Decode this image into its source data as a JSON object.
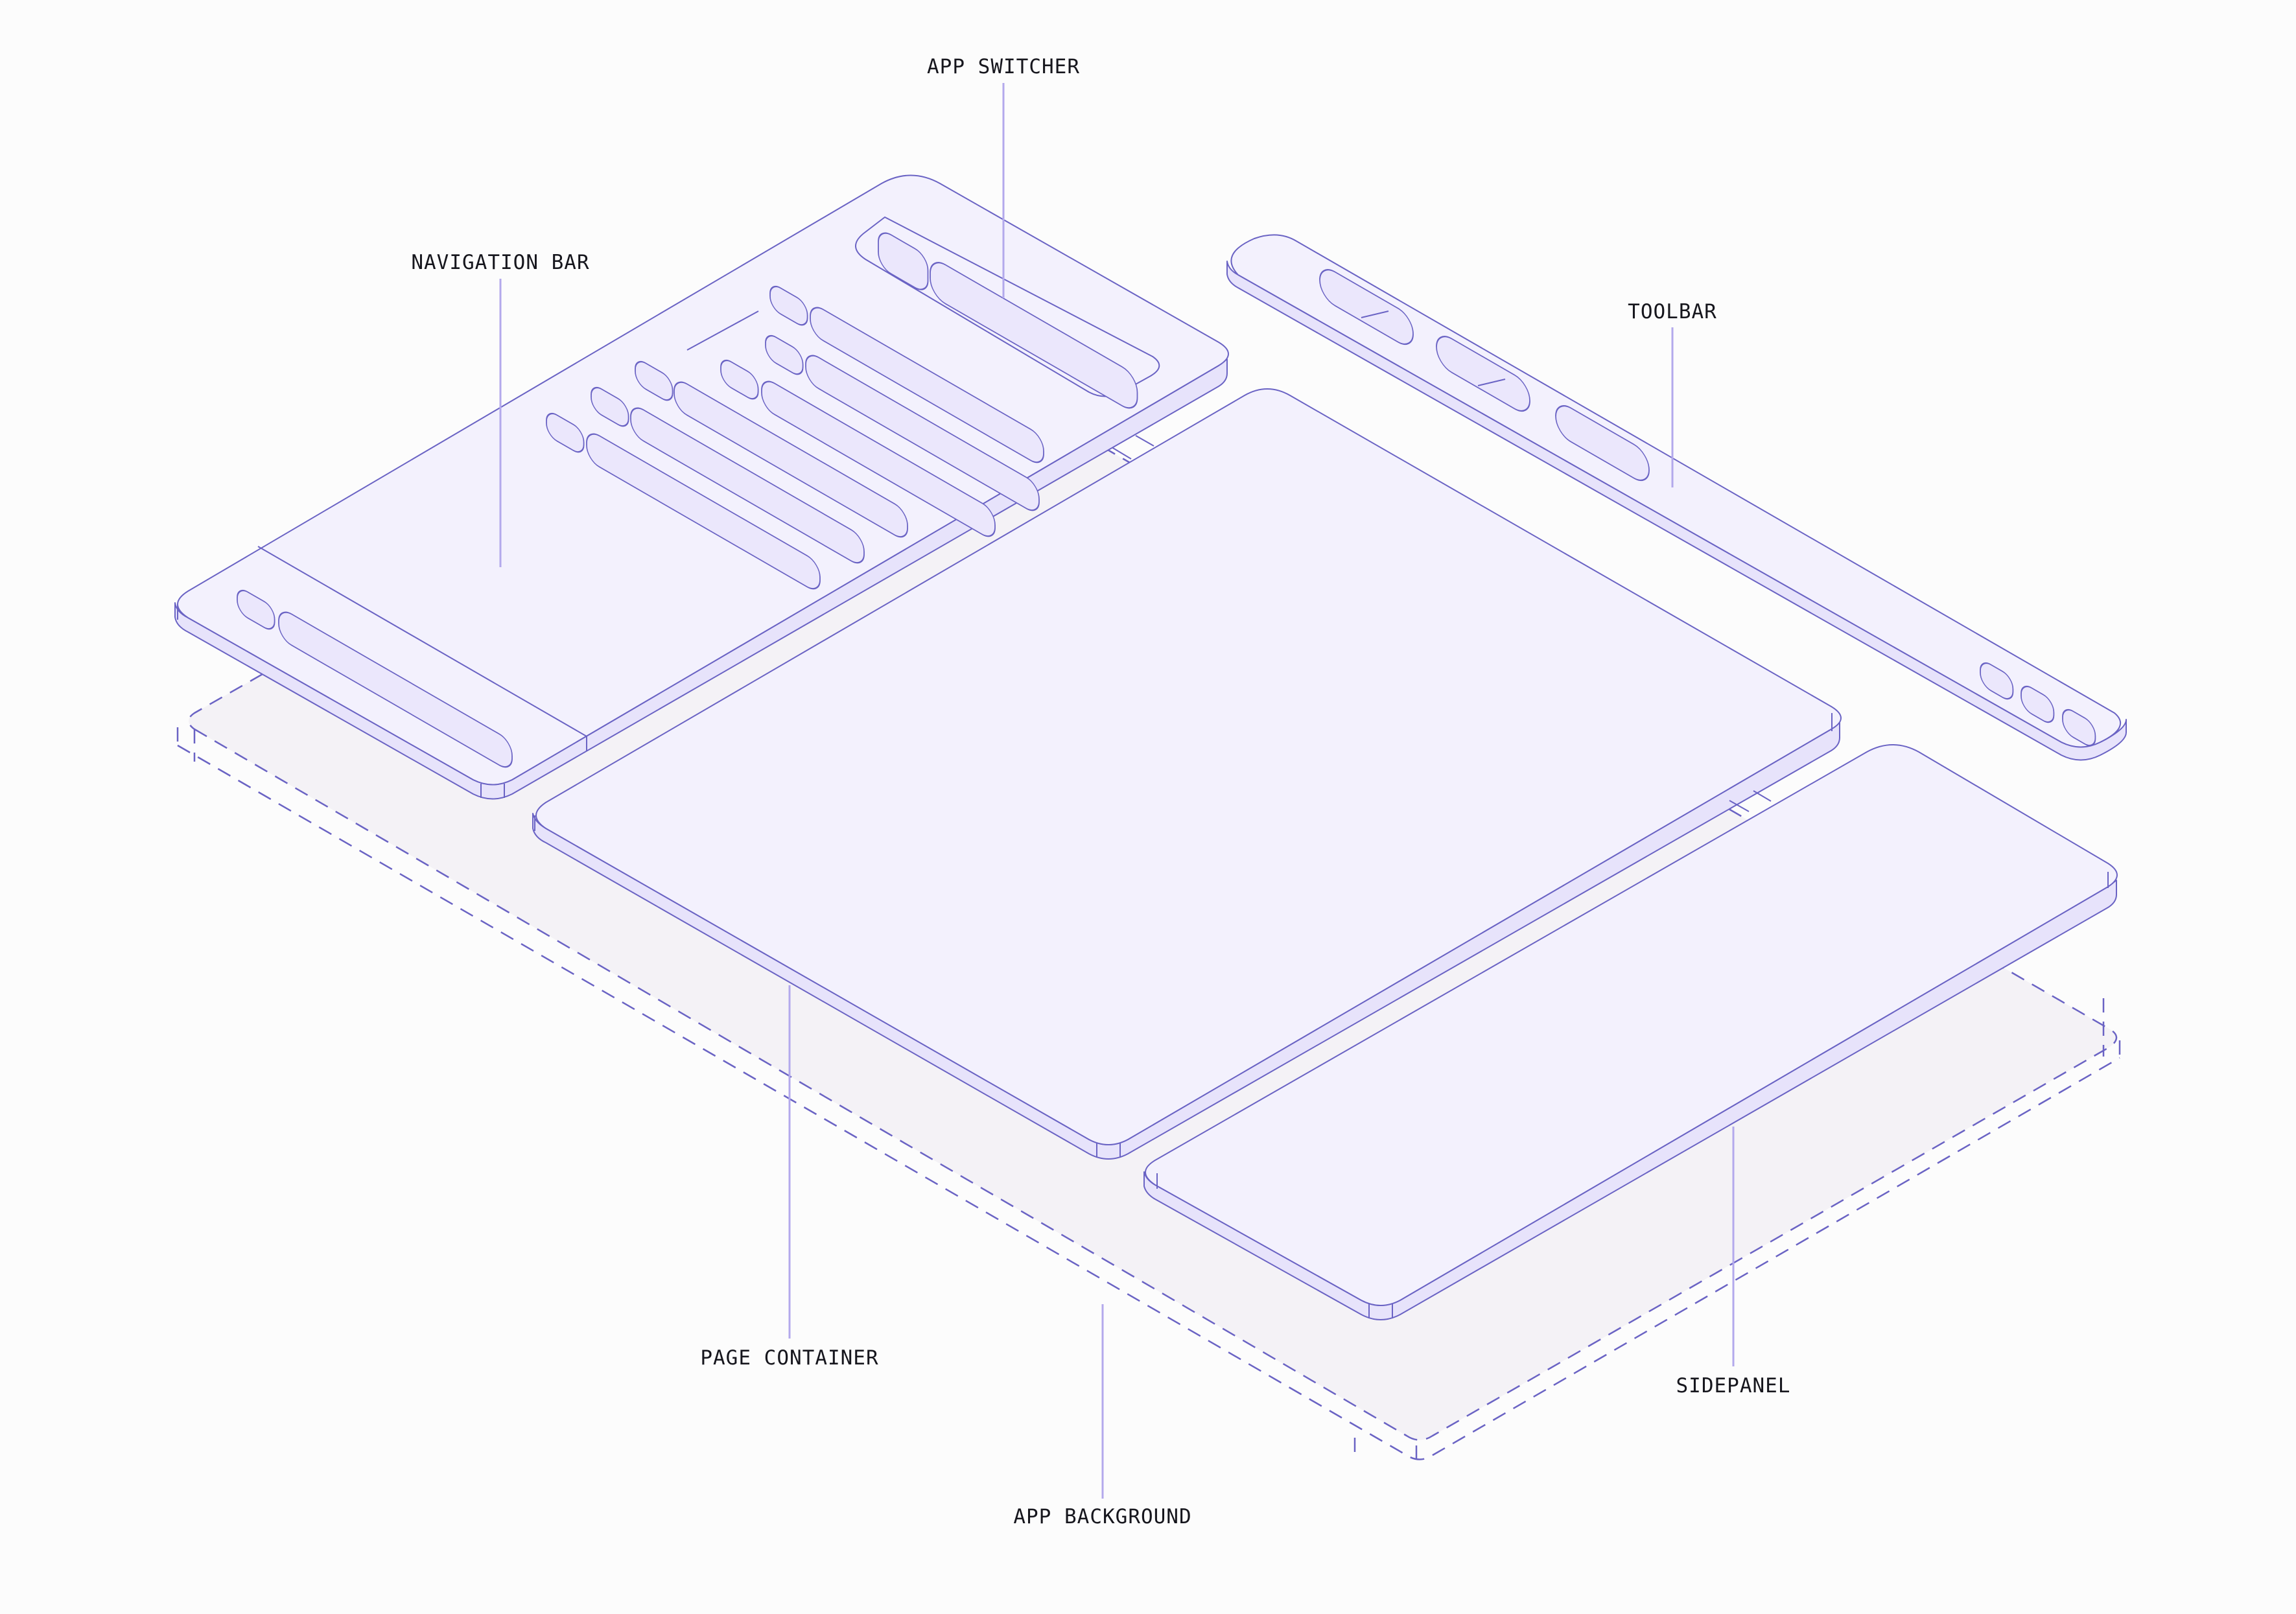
{
  "labels": {
    "app_switcher": "APP SWITCHER",
    "navigation_bar": "NAVIGATION BAR",
    "toolbar": "TOOLBAR",
    "page_container": "PAGE CONTAINER",
    "sidepanel": "SIDEPANEL",
    "app_background": "APP BACKGROUND"
  },
  "colors": {
    "stroke": "#6a63c4",
    "panel_fill": "#f3f1fd",
    "item_fill": "#ebe7fc",
    "background_fill": "#f4f2f6",
    "callout": "#b3a9ec",
    "text": "#16161d"
  }
}
